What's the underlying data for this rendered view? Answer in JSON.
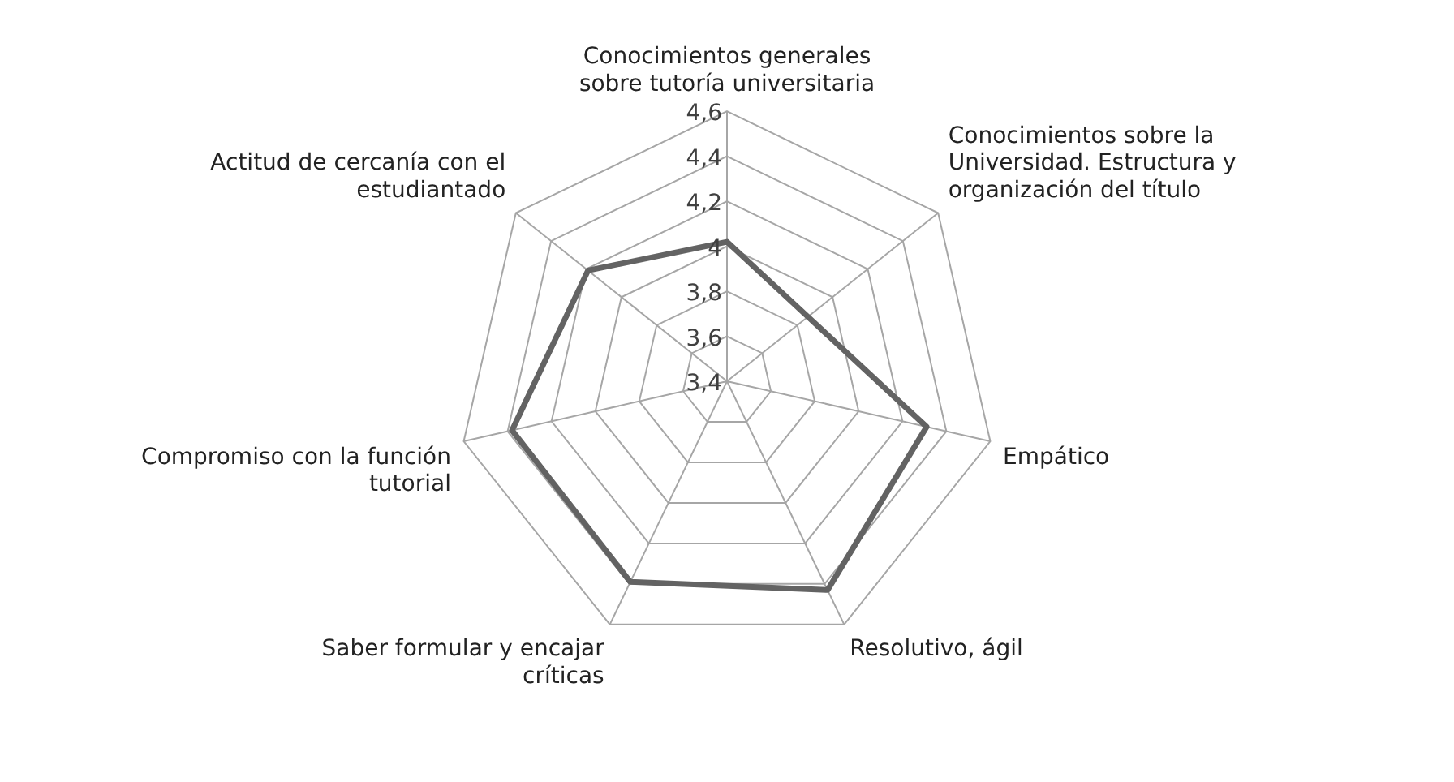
{
  "chart_data": {
    "type": "radar",
    "categories": [
      "Conocimientos generales sobre tutoría universitaria",
      "Conocimientos sobre la Universidad. Estructura y organización del título",
      "Empático",
      "Resolutivo, ágil",
      "Saber formular y encajar críticas",
      "Compromiso con la función tutorial",
      "Actitud de cercanía con el estudiantado"
    ],
    "series": [
      {
        "color": "#636363",
        "values": [
          4.02,
          3.86,
          4.31,
          4.43,
          4.39,
          4.38,
          4.19
        ]
      }
    ],
    "ylim": [
      3.4,
      4.6
    ],
    "yticks": [
      {
        "value": 3.4,
        "label": "3,4"
      },
      {
        "value": 3.6,
        "label": "3,6"
      },
      {
        "value": 3.8,
        "label": "3,8"
      },
      {
        "value": 4,
        "label": "4"
      },
      {
        "value": 4.2,
        "label": "4,2"
      },
      {
        "value": 4.4,
        "label": "4,4"
      },
      {
        "value": 4.6,
        "label": "4,6"
      }
    ],
    "grid": true,
    "legend": false,
    "marker": "none"
  }
}
